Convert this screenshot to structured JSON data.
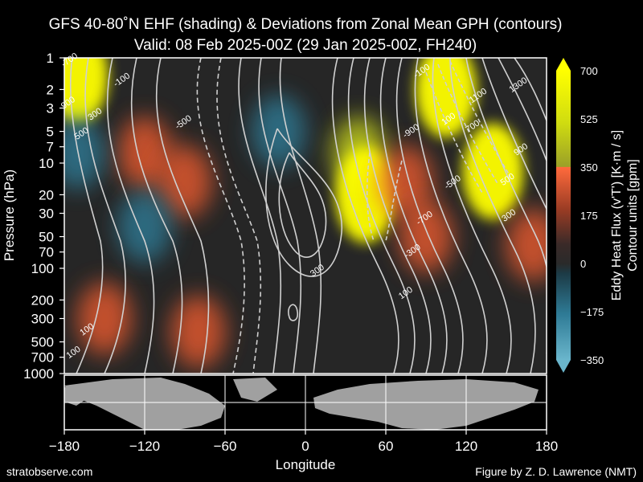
{
  "chart_data": {
    "type": "heatmap",
    "title": "GFS 40-80˚N EHF (shading) & Deviations from Zonal Mean GPH (contours)",
    "subtitle": "Valid: 08 Feb 2025-00Z  (29 Jan 2025-00Z, FH240)",
    "xlabel": "Longitude",
    "ylabel": "Pressure (hPa)",
    "xlim": [
      -180,
      180
    ],
    "ylim": [
      1000,
      1
    ],
    "y_scale": "log",
    "x_ticks": [
      "−180",
      "−120",
      "−60",
      "0",
      "60",
      "120",
      "180"
    ],
    "x_tick_values": [
      -180,
      -120,
      -60,
      0,
      60,
      120,
      180
    ],
    "y_ticks": [
      "1",
      "2",
      "3",
      "5",
      "7",
      "10",
      "20",
      "30",
      "50",
      "70",
      "100",
      "200",
      "300",
      "500",
      "700",
      "1000"
    ],
    "y_tick_values": [
      1,
      2,
      3,
      5,
      7,
      10,
      20,
      30,
      50,
      70,
      100,
      200,
      300,
      500,
      700,
      1000
    ],
    "colorbar": {
      "label": "Eddy Heat Flux (v'T')  [K·m / s]",
      "label2": "Contour units [gpm]",
      "ticks": [
        "700",
        "525",
        "350",
        "175",
        "0",
        "−175",
        "−350"
      ],
      "tick_values": [
        700,
        525,
        350,
        175,
        0,
        -175,
        -350
      ],
      "range": [
        -350,
        700
      ]
    },
    "shading_regions": [
      {
        "lon": -170,
        "p": 1.5,
        "value": 600
      },
      {
        "lon": -120,
        "p": 8,
        "value": 300
      },
      {
        "lon": -150,
        "p": 300,
        "value": 150
      },
      {
        "lon": -90,
        "p": 15,
        "value": 200
      },
      {
        "lon": -170,
        "p": 8,
        "value": -150
      },
      {
        "lon": -120,
        "p": 40,
        "value": -120
      },
      {
        "lon": -20,
        "p": 5,
        "value": -100
      },
      {
        "lon": 40,
        "p": 8,
        "value": 350
      },
      {
        "lon": 45,
        "p": 20,
        "value": 550
      },
      {
        "lon": 75,
        "p": 15,
        "value": 300
      },
      {
        "lon": 105,
        "p": 2,
        "value": 700
      },
      {
        "lon": 140,
        "p": 12,
        "value": 650
      },
      {
        "lon": 90,
        "p": 50,
        "value": 250
      },
      {
        "lon": 170,
        "p": 60,
        "value": 150
      },
      {
        "lon": -80,
        "p": 400,
        "value": 100
      }
    ],
    "contour_labels": [
      {
        "text": "-700",
        "lon": -175,
        "p": 1.1
      },
      {
        "text": "-100",
        "lon": -136,
        "p": 1.7
      },
      {
        "text": "900",
        "lon": -176,
        "p": 2.8
      },
      {
        "text": "500",
        "lon": -166,
        "p": 5.5
      },
      {
        "text": "300",
        "lon": -156,
        "p": 3.6
      },
      {
        "text": "-500",
        "lon": -90,
        "p": 4.3
      },
      {
        "text": "300",
        "lon": 10,
        "p": 110
      },
      {
        "text": "-100",
        "lon": 88,
        "p": 1.4
      },
      {
        "text": "100",
        "lon": 108,
        "p": 4
      },
      {
        "text": "-900",
        "lon": 80,
        "p": 5.2
      },
      {
        "text": "700",
        "lon": 126,
        "p": 4.7
      },
      {
        "text": "1100",
        "lon": 130,
        "p": 2.4
      },
      {
        "text": "1300",
        "lon": 160,
        "p": 1.9
      },
      {
        "text": "900",
        "lon": 162,
        "p": 7.8
      },
      {
        "text": "-500",
        "lon": 111,
        "p": 16
      },
      {
        "text": "500",
        "lon": 152,
        "p": 15
      },
      {
        "text": "300",
        "lon": 153,
        "p": 33
      },
      {
        "text": "-700",
        "lon": 90,
        "p": 35
      },
      {
        "text": "-300",
        "lon": 81,
        "p": 72
      },
      {
        "text": "100",
        "lon": 76,
        "p": 180
      },
      {
        "text": "100",
        "lon": -162,
        "p": 400
      },
      {
        "text": "100",
        "lon": -172,
        "p": 660
      }
    ]
  },
  "footer": {
    "left": "stratobserve.com",
    "right": "Figure by Z. D. Lawrence (NMT)"
  },
  "colors": {
    "background": "#000000",
    "ehf_high": "#ffff00",
    "ehf_mid": "#e85a2e",
    "ehf_low": "#2e7a95",
    "contour": "#d0d0d0",
    "land": "#a0a0a0"
  }
}
